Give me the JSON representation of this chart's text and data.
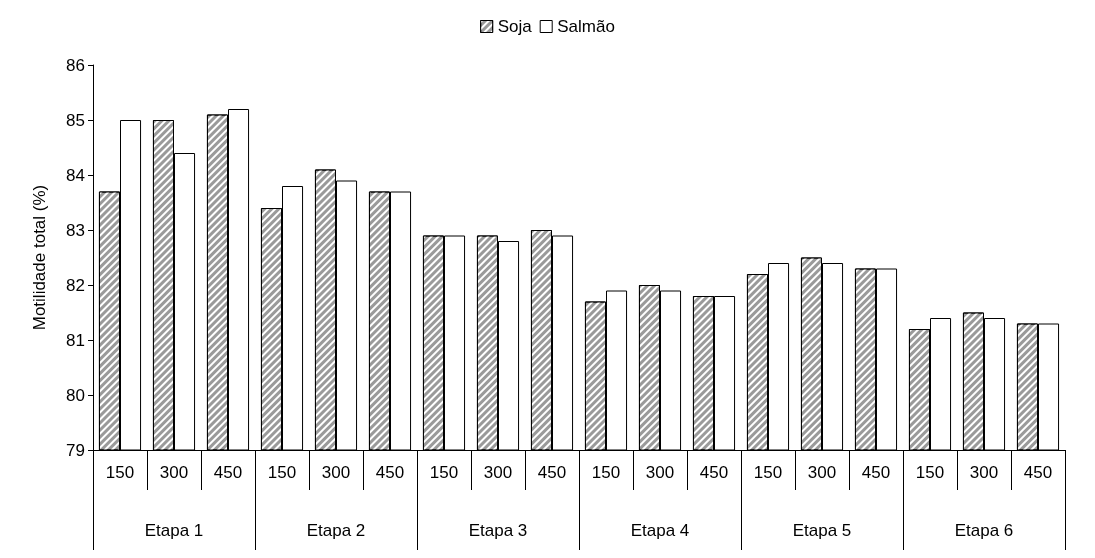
{
  "chart_data": {
    "type": "bar",
    "ylabel": "Motilidade total (%)",
    "categories": [
      "150",
      "300",
      "450",
      "150",
      "300",
      "450",
      "150",
      "300",
      "450",
      "150",
      "300",
      "450",
      "150",
      "300",
      "450",
      "150",
      "300",
      "450"
    ],
    "annotations": [
      "Etapa 1",
      "Etapa 2",
      "Etapa 3",
      "Etapa 4",
      "Etapa 5",
      "Etapa 6"
    ],
    "series": [
      {
        "name": "Soja",
        "color": "#9a9a9a",
        "values": [
          83.7,
          85.0,
          85.1,
          83.4,
          84.1,
          83.7,
          82.9,
          82.9,
          83.0,
          81.7,
          82.0,
          81.8,
          82.2,
          82.5,
          82.3,
          81.2,
          81.5,
          81.3
        ]
      },
      {
        "name": "Salmão",
        "color": "#ffffff",
        "values": [
          85.0,
          84.4,
          85.2,
          83.8,
          83.9,
          83.7,
          82.9,
          82.8,
          82.9,
          81.9,
          81.9,
          81.8,
          82.4,
          82.4,
          82.3,
          81.4,
          81.4,
          81.3
        ]
      }
    ],
    "ylim": [
      79,
      86
    ],
    "yticks": [
      79,
      80,
      81,
      82,
      83,
      84,
      85,
      86
    ],
    "grid": false,
    "legend": "top"
  }
}
